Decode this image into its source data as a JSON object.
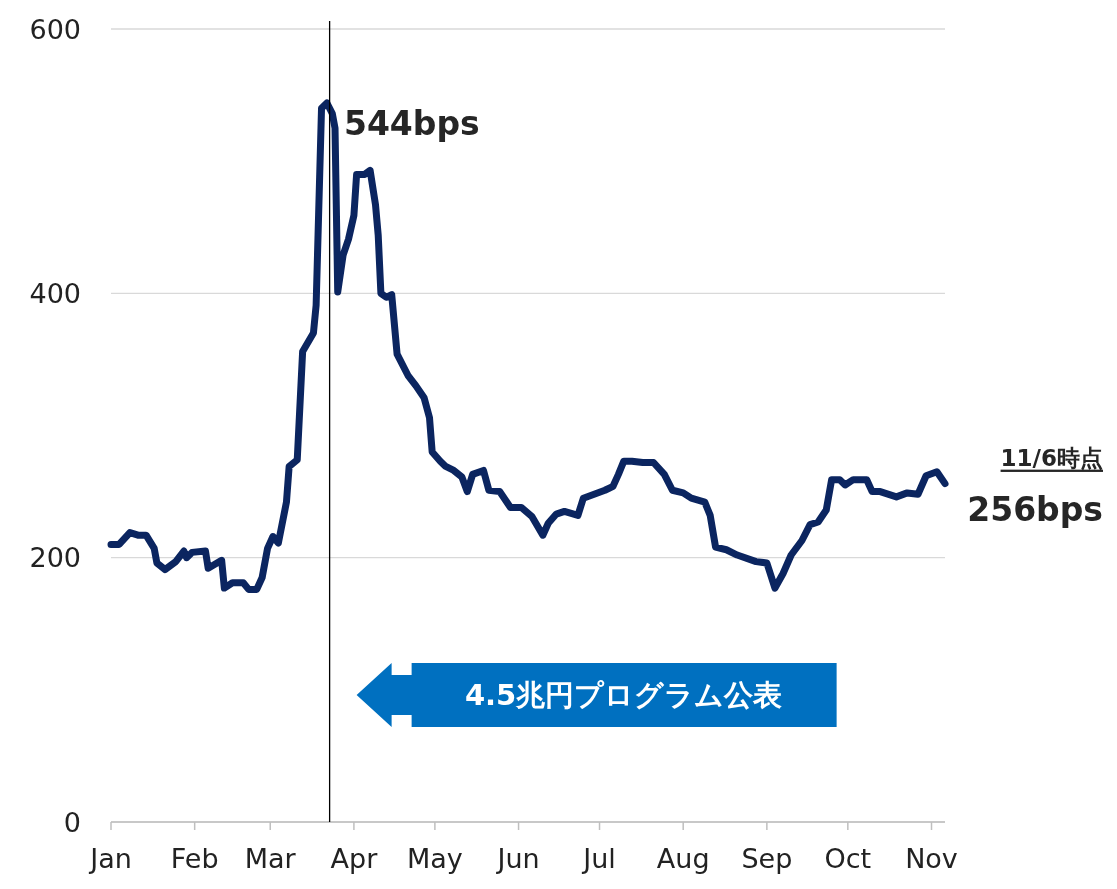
{
  "chart_data": {
    "type": "line",
    "x": [
      "--01-01",
      "--01-04",
      "--01-08",
      "--01-11",
      "--01-14",
      "--01-17",
      "--01-18",
      "--01-21",
      "--01-25",
      "--01-28",
      "--01-29",
      "--01-31",
      "--02-05",
      "--02-06",
      "--02-11",
      "--02-12",
      "--02-15",
      "--02-19",
      "--02-21",
      "--02-24",
      "--02-26",
      "--02-28",
      "--03-02",
      "--03-04",
      "--03-07",
      "--03-08",
      "--03-11",
      "--03-13",
      "--03-17",
      "--03-18",
      "--03-20",
      "--03-22",
      "--03-24",
      "--03-25",
      "--03-26",
      "--03-28",
      "--03-30",
      "--04-01",
      "--04-02",
      "--04-05",
      "--04-07",
      "--04-09",
      "--04-10",
      "--04-11",
      "--04-13",
      "--04-15",
      "--04-17",
      "--04-21",
      "--04-24",
      "--04-27",
      "--04-29",
      "--04-30",
      "--05-03",
      "--05-05",
      "--05-08",
      "--05-11",
      "--05-13",
      "--05-15",
      "--05-19",
      "--05-21",
      "--05-25",
      "--05-29",
      "--06-02",
      "--06-06",
      "--06-10",
      "--06-12",
      "--06-15",
      "--06-18",
      "--06-23",
      "--06-25",
      "--06-29",
      "--07-03",
      "--07-06",
      "--07-08",
      "--07-10",
      "--07-13",
      "--07-17",
      "--07-21",
      "--07-25",
      "--07-28",
      "--08-01",
      "--08-04",
      "--08-09",
      "--08-11",
      "--08-13",
      "--08-17",
      "--08-21",
      "--08-28",
      "--09-01",
      "--09-04",
      "--09-07",
      "--09-10",
      "--09-14",
      "--09-17",
      "--09-20",
      "--09-23",
      "--09-25",
      "--09-28",
      "--09-30",
      "--10-03",
      "--10-08",
      "--10-10",
      "--10-13",
      "--10-19",
      "--10-23",
      "--10-27",
      "--10-30",
      "--11-03",
      "--11-06"
    ],
    "series": [
      {
        "color": "#0b2560",
        "values": [
          210,
          210,
          219,
          217,
          217,
          207,
          196,
          191,
          197,
          205,
          200,
          204,
          205,
          192,
          198,
          177,
          181,
          181,
          176,
          176,
          185,
          207,
          216,
          211,
          242,
          269,
          274,
          356,
          370,
          391,
          540,
          544,
          536,
          525,
          401,
          429,
          441,
          459,
          490,
          490,
          493,
          467,
          444,
          400,
          397,
          399,
          354,
          338,
          330,
          321,
          306,
          280,
          273,
          269,
          266,
          261,
          250,
          263,
          266,
          251,
          250,
          238,
          238,
          231,
          217,
          226,
          233,
          235,
          232,
          245,
          248,
          251,
          254,
          263,
          273,
          273,
          272,
          272,
          263,
          251,
          249,
          245,
          242,
          232,
          208,
          206,
          202,
          197,
          196,
          177,
          188,
          202,
          213,
          225,
          227,
          236,
          259,
          259,
          255,
          259,
          259,
          250,
          250,
          246,
          249,
          248,
          262,
          265,
          256
        ]
      }
    ],
    "xlim": [
      "--01-01",
      "--11-06"
    ],
    "xticks": [
      {
        "value": "--01-01",
        "label": "Jan"
      },
      {
        "value": "--02-01",
        "label": "Feb"
      },
      {
        "value": "--03-01",
        "label": "Mar"
      },
      {
        "value": "--04-01",
        "label": "Apr"
      },
      {
        "value": "--05-01",
        "label": "May"
      },
      {
        "value": "--06-01",
        "label": "Jun"
      },
      {
        "value": "--07-01",
        "label": "Jul"
      },
      {
        "value": "--08-01",
        "label": "Aug"
      },
      {
        "value": "--09-01",
        "label": "Sep"
      },
      {
        "value": "--10-01",
        "label": "Oct"
      },
      {
        "value": "--11-01",
        "label": "Nov"
      }
    ],
    "ylim": [
      0,
      600
    ],
    "yticks": [
      0,
      200,
      400,
      600
    ],
    "grid": "y",
    "line_style": "solid",
    "ref_lines": [
      {
        "axis": "x",
        "value": "--03-23",
        "color": "#000000"
      }
    ],
    "annotations": [
      "4.5兆円プログラム公表",
      {
        "text": "544bps",
        "x": "--03-22",
        "y": 544
      },
      {
        "text": "11/6時点",
        "x": "--11-06",
        "y": 256
      },
      {
        "text": "256bps",
        "x": "--11-06",
        "y": 256
      }
    ]
  }
}
